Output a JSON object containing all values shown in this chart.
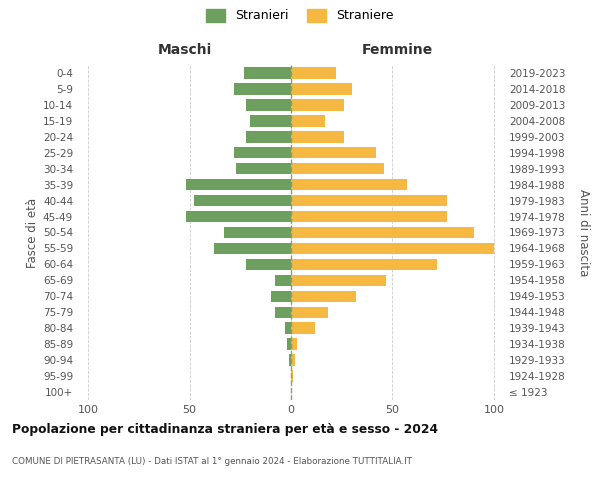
{
  "age_groups": [
    "100+",
    "95-99",
    "90-94",
    "85-89",
    "80-84",
    "75-79",
    "70-74",
    "65-69",
    "60-64",
    "55-59",
    "50-54",
    "45-49",
    "40-44",
    "35-39",
    "30-34",
    "25-29",
    "20-24",
    "15-19",
    "10-14",
    "5-9",
    "0-4"
  ],
  "birth_years": [
    "≤ 1923",
    "1924-1928",
    "1929-1933",
    "1934-1938",
    "1939-1943",
    "1944-1948",
    "1949-1953",
    "1954-1958",
    "1959-1963",
    "1964-1968",
    "1969-1973",
    "1974-1978",
    "1979-1983",
    "1984-1988",
    "1989-1993",
    "1994-1998",
    "1999-2003",
    "2004-2008",
    "2009-2013",
    "2014-2018",
    "2019-2023"
  ],
  "maschi": [
    0,
    0,
    1,
    2,
    3,
    8,
    10,
    8,
    22,
    38,
    33,
    52,
    48,
    52,
    27,
    28,
    22,
    20,
    22,
    28,
    23
  ],
  "femmine": [
    0,
    1,
    2,
    3,
    12,
    18,
    32,
    47,
    72,
    100,
    90,
    77,
    77,
    57,
    46,
    42,
    26,
    17,
    26,
    30,
    22
  ],
  "male_color": "#6d9f5e",
  "female_color": "#f5b942",
  "background_color": "#ffffff",
  "grid_color": "#cccccc",
  "title": "Popolazione per cittadinanza straniera per età e sesso - 2024",
  "subtitle": "COMUNE DI PIETRASANTA (LU) - Dati ISTAT al 1° gennaio 2024 - Elaborazione TUTTITALIA.IT",
  "xlabel_left": "Maschi",
  "xlabel_right": "Femmine",
  "ylabel_left": "Fasce di età",
  "ylabel_right": "Anni di nascita",
  "legend_male": "Stranieri",
  "legend_female": "Straniere",
  "xlim": 105,
  "center_line_color": "#999966"
}
